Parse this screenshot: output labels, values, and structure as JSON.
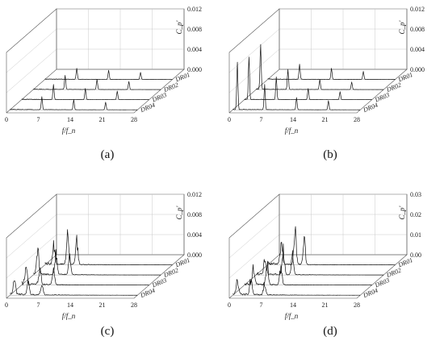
{
  "chart_data": [
    {
      "type": "line",
      "caption": "(a)",
      "xlabel": "f/f_n",
      "ylabel": "C_p'",
      "x_ticks": [
        "0",
        "7",
        "14",
        "21",
        "28"
      ],
      "z_ticks": [
        "0.000",
        "0.004",
        "0.008",
        "0.012"
      ],
      "xlim": [
        0,
        28
      ],
      "zlim": [
        0,
        0.012
      ],
      "series": [
        {
          "name": "DR01",
          "peaks": [
            [
              7,
              0.0022
            ],
            [
              14,
              0.0018
            ],
            [
              21,
              0.0014
            ]
          ]
        },
        {
          "name": "DR02",
          "peaks": [
            [
              7,
              0.0028
            ],
            [
              14,
              0.002
            ],
            [
              21,
              0.0016
            ]
          ]
        },
        {
          "name": "DR03",
          "peaks": [
            [
              7,
              0.003
            ],
            [
              14,
              0.0022
            ],
            [
              21,
              0.0017
            ]
          ]
        },
        {
          "name": "DR04",
          "peaks": [
            [
              7,
              0.0026
            ],
            [
              14,
              0.002
            ],
            [
              21,
              0.0015
            ]
          ]
        }
      ]
    },
    {
      "type": "line",
      "caption": "(b)",
      "xlabel": "f/f_n",
      "ylabel": "C_p'",
      "x_ticks": [
        "0",
        "7",
        "14",
        "21",
        "28"
      ],
      "z_ticks": [
        "0.000",
        "0.004",
        "0.008",
        "0.012"
      ],
      "xlim": [
        0,
        28
      ],
      "zlim": [
        0,
        0.012
      ],
      "series": [
        {
          "name": "DR01",
          "peaks": [
            [
              7,
              0.003
            ],
            [
              14,
              0.0022
            ],
            [
              21,
              0.0016
            ]
          ]
        },
        {
          "name": "DR02",
          "peaks": [
            [
              1,
              0.009
            ],
            [
              7,
              0.004
            ],
            [
              14,
              0.002
            ],
            [
              21,
              0.0015
            ]
          ]
        },
        {
          "name": "DR03",
          "peaks": [
            [
              1,
              0.0085
            ],
            [
              7,
              0.0045
            ],
            [
              14,
              0.0022
            ],
            [
              21,
              0.0016
            ]
          ]
        },
        {
          "name": "DR04",
          "peaks": [
            [
              1,
              0.0095
            ],
            [
              7,
              0.005
            ],
            [
              14,
              0.0024
            ],
            [
              21,
              0.0018
            ]
          ]
        }
      ]
    },
    {
      "type": "line",
      "caption": "(c)",
      "xlabel": "f/f_n",
      "ylabel": "C_p'",
      "x_ticks": [
        "0",
        "7",
        "14",
        "21",
        "28"
      ],
      "z_ticks": [
        "0.000",
        "0.004",
        "0.008",
        "0.012"
      ],
      "xlim": [
        0,
        28
      ],
      "zlim": [
        0,
        0.012
      ],
      "series": [
        {
          "name": "DR01",
          "peaks": [
            [
              2,
              0.004
            ],
            [
              5,
              0.006
            ],
            [
              7,
              0.005
            ]
          ]
        },
        {
          "name": "DR02",
          "peaks": [
            [
              1,
              0.005
            ],
            [
              5,
              0.0045
            ],
            [
              8,
              0.0035
            ]
          ]
        },
        {
          "name": "DR03",
          "peaks": [
            [
              1,
              0.004
            ],
            [
              4,
              0.0035
            ],
            [
              7,
              0.003
            ]
          ]
        },
        {
          "name": "DR04",
          "peaks": [
            [
              1,
              0.003
            ],
            [
              4,
              0.0025
            ],
            [
              7,
              0.0022
            ]
          ]
        }
      ]
    },
    {
      "type": "line",
      "caption": "(d)",
      "xlabel": "f/f_n",
      "ylabel": "C_p'",
      "x_ticks": [
        "0",
        "7",
        "14",
        "21",
        "28"
      ],
      "z_ticks": [
        "0.00",
        "0.01",
        "0.02",
        "0.03"
      ],
      "xlim": [
        0,
        28
      ],
      "zlim": [
        0,
        0.03
      ],
      "series": [
        {
          "name": "DR01",
          "peaks": [
            [
              3,
              0.012
            ],
            [
              6,
              0.018
            ],
            [
              8,
              0.014
            ]
          ]
        },
        {
          "name": "DR02",
          "peaks": [
            [
              2,
              0.01
            ],
            [
              6,
              0.014
            ],
            [
              8,
              0.011
            ]
          ]
        },
        {
          "name": "DR03",
          "peaks": [
            [
              2,
              0.009
            ],
            [
              5,
              0.011
            ],
            [
              8,
              0.009
            ]
          ]
        },
        {
          "name": "DR04",
          "peaks": [
            [
              1,
              0.007
            ],
            [
              4,
              0.008
            ],
            [
              7,
              0.006
            ]
          ]
        }
      ]
    }
  ]
}
